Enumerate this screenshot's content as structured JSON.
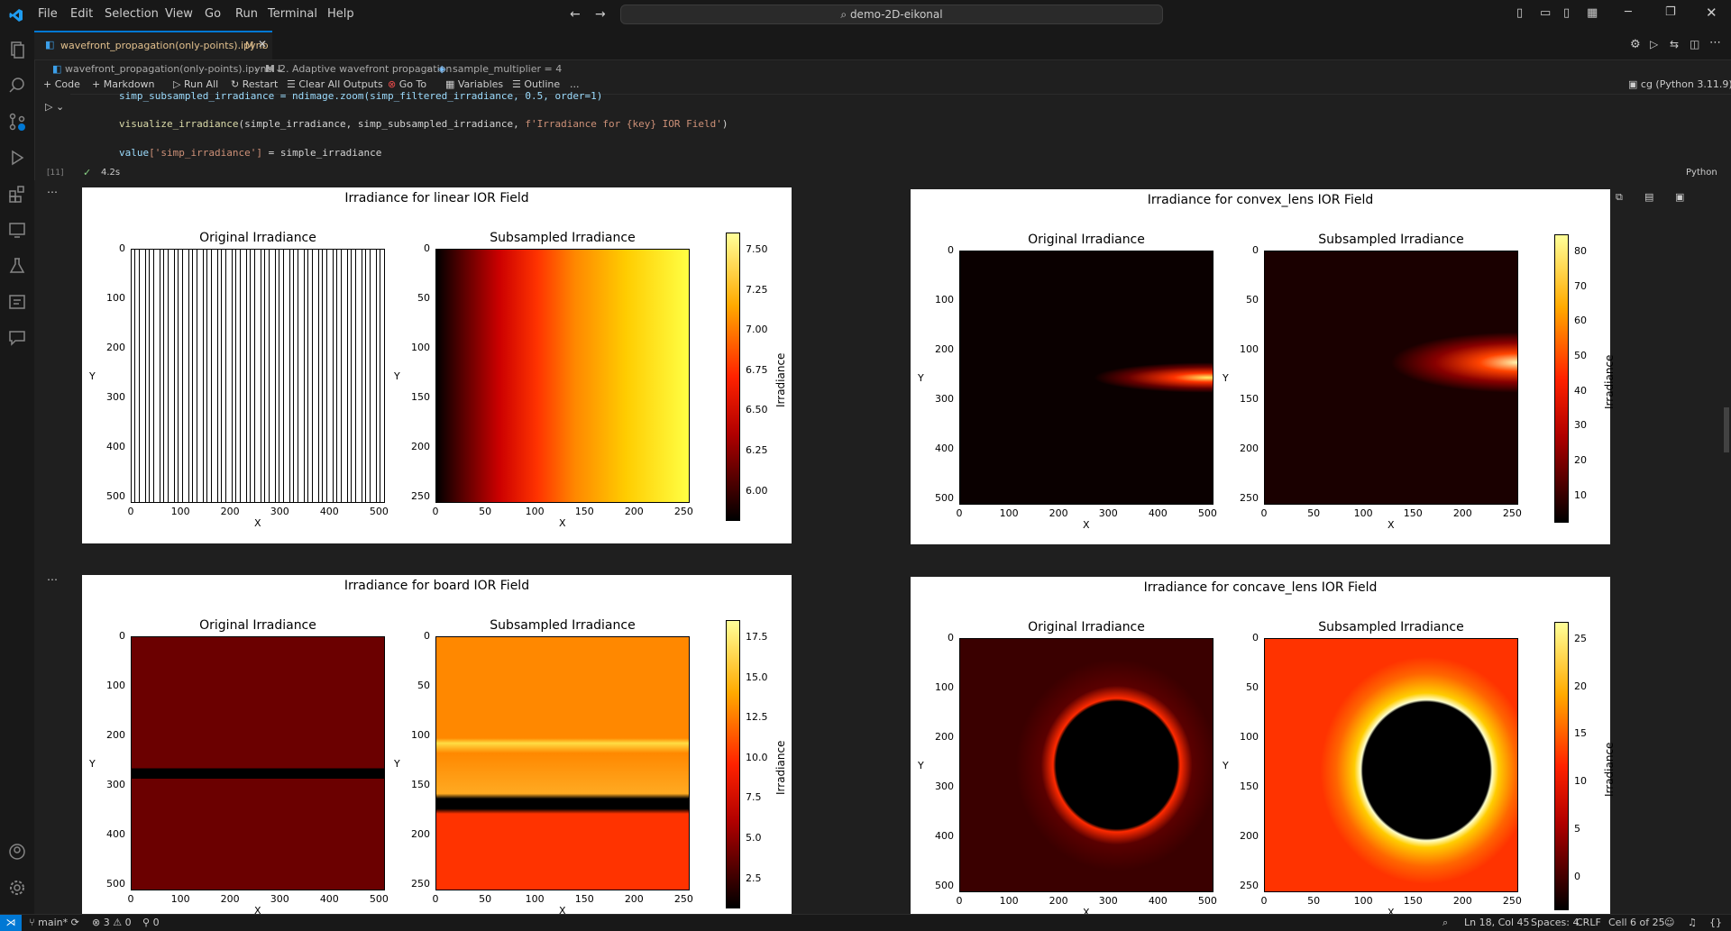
{
  "menu": [
    "File",
    "Edit",
    "Selection",
    "View",
    "Go",
    "Run",
    "Terminal",
    "Help"
  ],
  "command_center": "demo-2D-eikonal",
  "tab": {
    "label": "wavefront_propagation(only-points).ipynb",
    "badge": "M"
  },
  "breadcrumb": [
    "wavefront_propagation(only-points).ipynb",
    "2. Adaptive wavefront propagation",
    "sample_multiplier = 4"
  ],
  "toolbar": {
    "code": "Code",
    "markdown": "Markdown",
    "run_all": "Run All",
    "restart": "Restart",
    "clear": "Clear All Outputs",
    "goto": "Go To",
    "variables": "Variables",
    "outline": "Outline",
    "more": "...",
    "kernel": "cg (Python 3.11.9)"
  },
  "cell": {
    "line1": "simp_subsampled_irradiance = ndimage.zoom(simp_filtered_irradiance, 0.5, order=1)",
    "line2a": "visualize_irradiance",
    "line2b": "(simple_irradiance, simp_subsampled_irradiance, ",
    "line2c": "f'Irradiance for {key} IOR Field'",
    "line2d": ")",
    "line3a": "value",
    "line3b": "['simp_irradiance']",
    "line3c": " = simple_irradiance",
    "exec_count": "[11]",
    "time": "4.2s",
    "language": "Python"
  },
  "figures": [
    {
      "title": "Irradiance for linear IOR Field",
      "cb_ticks": [
        "7.50",
        "7.25",
        "7.00",
        "6.75",
        "6.50",
        "6.25",
        "6.00"
      ],
      "fill": "linear"
    },
    {
      "title": "Irradiance for convex_lens IOR Field",
      "cb_ticks": [
        "80",
        "70",
        "60",
        "50",
        "40",
        "30",
        "20",
        "10"
      ],
      "fill": "convex"
    },
    {
      "title": "Irradiance for board IOR Field",
      "cb_ticks": [
        "17.5",
        "15.0",
        "12.5",
        "10.0",
        "7.5",
        "5.0",
        "2.5"
      ],
      "fill": "board"
    },
    {
      "title": "Irradiance for concave_lens IOR Field",
      "cb_ticks": [
        "25",
        "20",
        "15",
        "10",
        "5",
        "0"
      ],
      "fill": "concave"
    }
  ],
  "labels": {
    "orig": "Original Irradiance",
    "sub": "Subsampled Irradiance",
    "x": "X",
    "y": "Y",
    "cb": "Irradiance"
  },
  "ticks_orig": [
    "0",
    "100",
    "200",
    "300",
    "400",
    "500"
  ],
  "ticks_sub_y": [
    "0",
    "50",
    "100",
    "150",
    "200",
    "250"
  ],
  "ticks_sub_x": [
    "0",
    "50",
    "100",
    "150",
    "200",
    "250"
  ],
  "status": {
    "branch": "main*",
    "errors": "3",
    "warnings": "0",
    "ports": "0",
    "position": "Ln 18, Col 45",
    "spaces": "Spaces: 4",
    "eol": "CRLF",
    "cell": "Cell 6 of 25"
  },
  "colors": {
    "accent": "#0078d4",
    "status_remote": "#0078d4"
  }
}
